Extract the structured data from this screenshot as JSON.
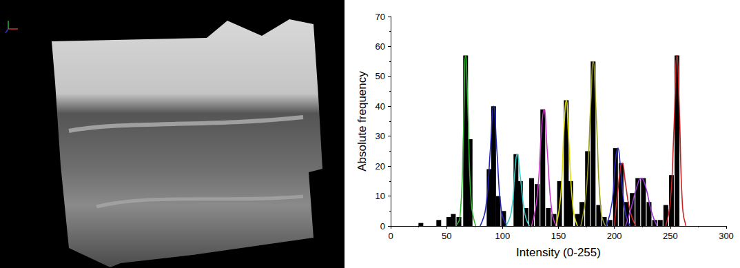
{
  "chart_data": {
    "type": "bar",
    "x_label": "Intensity (0-255)",
    "y_label": "Absolute frequency",
    "color": "#000000",
    "x": [
      27,
      43,
      52,
      56,
      61,
      67,
      71,
      88,
      92,
      96,
      101,
      112,
      116,
      121,
      126,
      131,
      136,
      141,
      146,
      151,
      157,
      161,
      167,
      171,
      176,
      181,
      186,
      191,
      196,
      201,
      206,
      211,
      216,
      221,
      226,
      231,
      236,
      241,
      246,
      251,
      256
    ],
    "values": [
      1,
      2,
      3,
      4,
      3,
      57,
      29,
      19,
      40,
      10,
      5,
      24,
      15,
      6,
      16,
      14,
      39,
      6,
      4,
      15,
      42,
      15,
      4,
      8,
      25,
      55,
      7,
      3,
      2,
      26,
      21,
      8,
      11,
      16,
      16,
      8,
      2,
      2,
      7,
      17,
      57
    ],
    "xlim": [
      0,
      300
    ],
    "xticks": [
      0,
      50,
      100,
      150,
      200,
      250,
      300
    ],
    "ylim": [
      0,
      70
    ],
    "yticks": [
      0,
      10,
      20,
      30,
      40,
      50,
      60,
      70
    ],
    "series": [
      {
        "type": "line",
        "color": "#2db82d",
        "x": [
          58,
          62,
          65,
          67,
          69,
          72,
          76
        ],
        "values": [
          0,
          3,
          30,
          57,
          40,
          8,
          0
        ]
      },
      {
        "type": "line",
        "color": "#2222bb",
        "x": [
          80,
          85,
          89,
          92,
          95,
          99,
          104
        ],
        "values": [
          0,
          6,
          25,
          40,
          25,
          5,
          0
        ]
      },
      {
        "type": "line",
        "color": "#33cccc",
        "x": [
          103,
          108,
          111,
          113,
          116,
          120,
          124
        ],
        "values": [
          0,
          5,
          18,
          24,
          16,
          4,
          0
        ]
      },
      {
        "type": "line",
        "color": "#cc33cc",
        "x": [
          126,
          131,
          135,
          137,
          140,
          144,
          148
        ],
        "values": [
          0,
          10,
          33,
          39,
          25,
          5,
          0
        ]
      },
      {
        "type": "line",
        "color": "#e0e000",
        "x": [
          148,
          152,
          155,
          157,
          159,
          163,
          167
        ],
        "values": [
          0,
          10,
          33,
          42,
          30,
          6,
          0
        ]
      },
      {
        "type": "line",
        "color": "#99991a",
        "x": [
          170,
          175,
          179,
          181,
          184,
          188,
          192
        ],
        "values": [
          0,
          12,
          42,
          55,
          35,
          5,
          0
        ]
      },
      {
        "type": "line",
        "color": "#2b2bcc",
        "x": [
          193,
          198,
          201,
          203,
          206,
          210,
          214
        ],
        "values": [
          0,
          8,
          22,
          26,
          17,
          4,
          0
        ]
      },
      {
        "type": "line",
        "color": "#cc2222",
        "x": [
          200,
          204,
          207,
          210,
          214,
          219
        ],
        "values": [
          0,
          15,
          21,
          14,
          5,
          0
        ]
      },
      {
        "type": "line",
        "color": "#9933cc",
        "x": [
          210,
          215,
          220,
          224,
          228,
          233,
          238
        ],
        "values": [
          0,
          6,
          13,
          16,
          13,
          5,
          0
        ]
      },
      {
        "type": "line",
        "color": "#cc2222",
        "x": [
          246,
          250,
          253,
          256,
          258,
          261,
          264
        ],
        "values": [
          0,
          8,
          30,
          57,
          40,
          6,
          0
        ]
      }
    ]
  }
}
